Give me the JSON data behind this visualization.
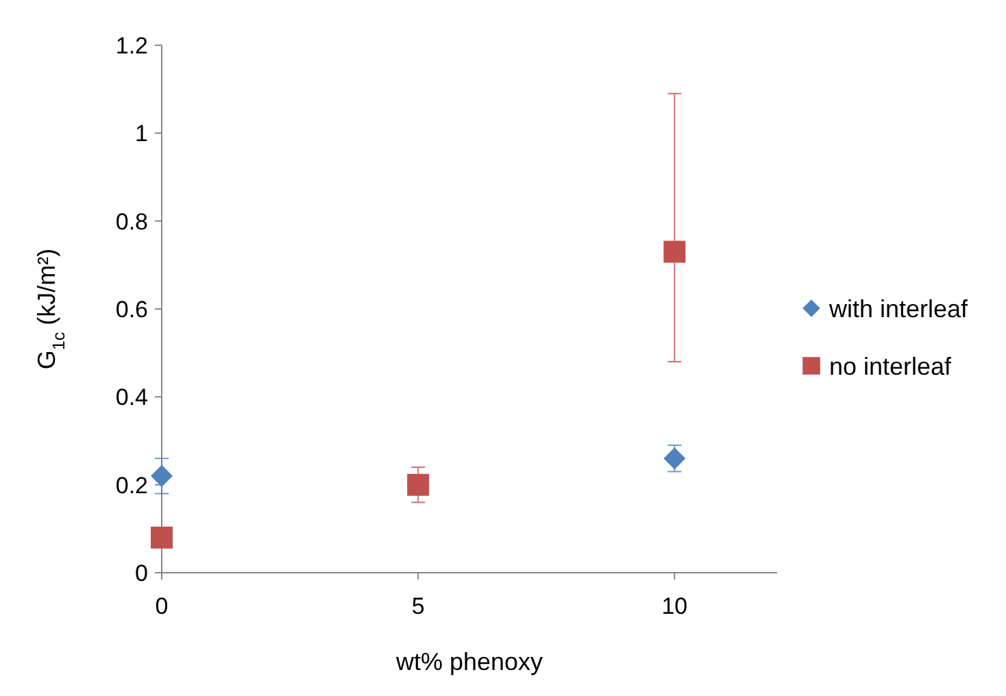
{
  "chart_data": {
    "type": "scatter",
    "xlabel": "wt% phenoxy",
    "ylabel": "G$_{1c}$ (kJ/m²)",
    "xlim": [
      0,
      12
    ],
    "xticks": [
      0,
      5,
      10
    ],
    "ylim": [
      0,
      1.2
    ],
    "yticks": [
      0,
      0.2,
      0.4,
      0.6,
      0.8,
      1,
      1.2
    ],
    "grid": false,
    "legend": "right",
    "series": [
      {
        "name": "with interleaf",
        "color": "#4f81bd",
        "marker": "diamond",
        "x": [
          0,
          10
        ],
        "values": [
          0.22,
          0.26
        ],
        "errors": [
          0.04,
          0.03
        ]
      },
      {
        "name": "no interleaf",
        "color": "#c0504d",
        "marker": "square",
        "x": [
          0,
          5,
          10
        ],
        "values": [
          0.08,
          0.2,
          0.73
        ],
        "errors": [
          null,
          0.04,
          [
            0.48,
            1.09
          ]
        ]
      }
    ]
  }
}
